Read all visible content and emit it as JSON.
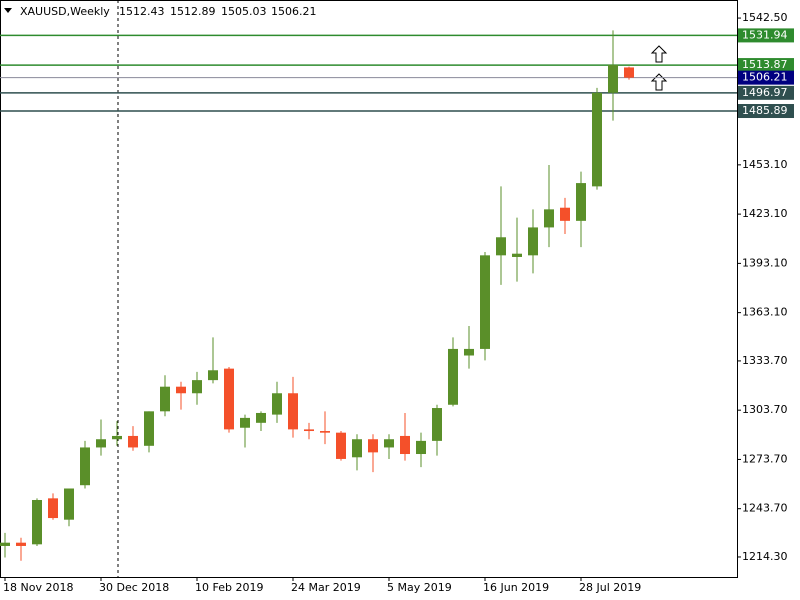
{
  "chart_data": {
    "type": "candlestick",
    "symbol": "XAUUSD,Weekly",
    "categories": [
      "18 Nov 2018",
      null,
      null,
      null,
      null,
      null,
      "30 Dec 2018",
      null,
      null,
      null,
      null,
      null,
      "10 Feb 2019",
      null,
      null,
      null,
      null,
      null,
      "24 Mar 2019",
      null,
      null,
      null,
      null,
      null,
      "5 May 2019",
      null,
      null,
      null,
      null,
      null,
      "16 Jun 2019",
      null,
      null,
      null,
      null,
      null,
      "28 Jul 2019",
      null,
      null,
      null
    ],
    "open": [
      1221,
      1223,
      1222,
      1250,
      1237,
      1258,
      1281,
      1286,
      1288,
      1282,
      1303,
      1318,
      1314,
      1322,
      1329,
      1293,
      1296,
      1301,
      1314,
      1292,
      1291,
      1290,
      1275,
      1286,
      1281,
      1288,
      1277,
      1285,
      1307,
      1337,
      1341,
      1398,
      1397,
      1398,
      1415,
      1427,
      1419,
      1440,
      1497,
      1512.43
    ],
    "high": [
      1229,
      1226,
      1250,
      1253,
      1256,
      1285,
      1298,
      1297,
      1294,
      1303,
      1325,
      1321,
      1327,
      1348,
      1330,
      1301,
      1303,
      1321,
      1324,
      1296,
      1303,
      1291,
      1289,
      1289,
      1289,
      1302,
      1290,
      1307,
      1348,
      1355,
      1400,
      1440,
      1421,
      1426,
      1453,
      1433,
      1449,
      1500,
      1535,
      1512.89
    ],
    "low": [
      1214,
      1212,
      1221,
      1237,
      1233,
      1256,
      1276,
      1282,
      1279,
      1278,
      1300,
      1304,
      1307,
      1320,
      1290,
      1281,
      1291,
      1296,
      1287,
      1286,
      1283,
      1273,
      1267,
      1266,
      1274,
      1273,
      1269,
      1276,
      1306,
      1329,
      1334,
      1380,
      1382,
      1387,
      1403,
      1411,
      1403,
      1438,
      1480,
      1505.03
    ],
    "close": [
      1223,
      1221,
      1249,
      1238,
      1256,
      1281,
      1286,
      1288,
      1281,
      1303,
      1318,
      1314,
      1322,
      1328,
      1292,
      1299,
      1302,
      1314,
      1292,
      1291,
      1290,
      1274,
      1286,
      1278,
      1286,
      1277,
      1285,
      1305,
      1341,
      1341,
      1398,
      1409,
      1399,
      1415,
      1426,
      1419,
      1442,
      1497,
      1514,
      1506.21
    ],
    "up_color": "#5a8f29",
    "down_color": "#f4502a",
    "ylim": [
      1202.1,
      1553.5
    ],
    "yticks": [
      {
        "value": 1542.5,
        "label": "1542.50"
      },
      {
        "value": 1453.1,
        "label": "1453.10"
      },
      {
        "value": 1423.1,
        "label": "1423.10"
      },
      {
        "value": 1393.1,
        "label": "1393.10"
      },
      {
        "value": 1363.1,
        "label": "1363.10"
      },
      {
        "value": 1333.7,
        "label": "1333.70"
      },
      {
        "value": 1303.7,
        "label": "1303.70"
      },
      {
        "value": 1273.7,
        "label": "1273.70"
      },
      {
        "value": 1243.7,
        "label": "1243.70"
      },
      {
        "value": 1214.3,
        "label": "1214.30"
      }
    ],
    "levels": [
      {
        "value": 1531.94,
        "color": "#2e8b2e"
      },
      {
        "value": 1513.87,
        "color": "#2e8b2e"
      },
      {
        "value": 1496.97,
        "color": "#2f4f4f"
      },
      {
        "value": 1485.89,
        "color": "#2f4f4f"
      }
    ],
    "price_line_color": "#8a8a9a",
    "price_label_color": "#000080"
  }
}
